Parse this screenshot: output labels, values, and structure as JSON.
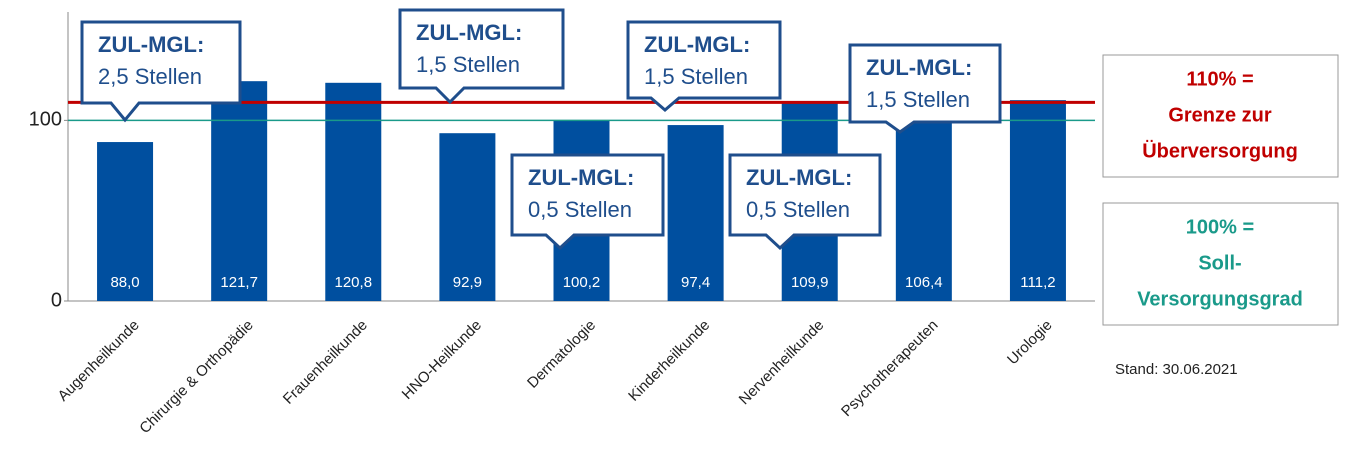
{
  "chart_data": {
    "type": "bar",
    "categories": [
      "Augenheilkunde",
      "Chirurgie & Orthopädie",
      "Frauenheilkunde",
      "HNO-Heilkunde",
      "Dermatologie",
      "Kinderheilkunde",
      "Nervenheilkunde",
      "Psychotherapeuten",
      "Urologie"
    ],
    "values": [
      88.0,
      121.7,
      120.8,
      92.9,
      100.2,
      97.4,
      109.9,
      106.4,
      111.2
    ],
    "value_labels": [
      "88,0",
      "121,7",
      "120,8",
      "92,9",
      "100,2",
      "97,4",
      "109,9",
      "106,4",
      "111,2"
    ],
    "color": "#004f9f",
    "ylim": [
      0,
      160
    ],
    "yticks": [
      0,
      100
    ],
    "reference_lines": [
      {
        "value": 110,
        "color": "#c00000",
        "label_lines": [
          "110% =",
          "Grenze zur",
          "Überversorgung"
        ]
      },
      {
        "value": 100,
        "color": "#1a9a8a",
        "label_lines": [
          "100% =",
          "Soll-",
          "Versorgungsgrad"
        ]
      }
    ],
    "annotations": [
      {
        "title": "ZUL-MGL:",
        "text": "2,5 Stellen"
      },
      {
        "title": "ZUL-MGL:",
        "text": "1,5 Stellen"
      },
      {
        "title": "ZUL-MGL:",
        "text": "0,5 Stellen"
      },
      {
        "title": "ZUL-MGL:",
        "text": "1,5 Stellen"
      },
      {
        "title": "ZUL-MGL:",
        "text": "0,5 Stellen"
      },
      {
        "title": "ZUL-MGL:",
        "text": "1,5 Stellen"
      }
    ],
    "note": "Stand: 30.06.2021"
  }
}
